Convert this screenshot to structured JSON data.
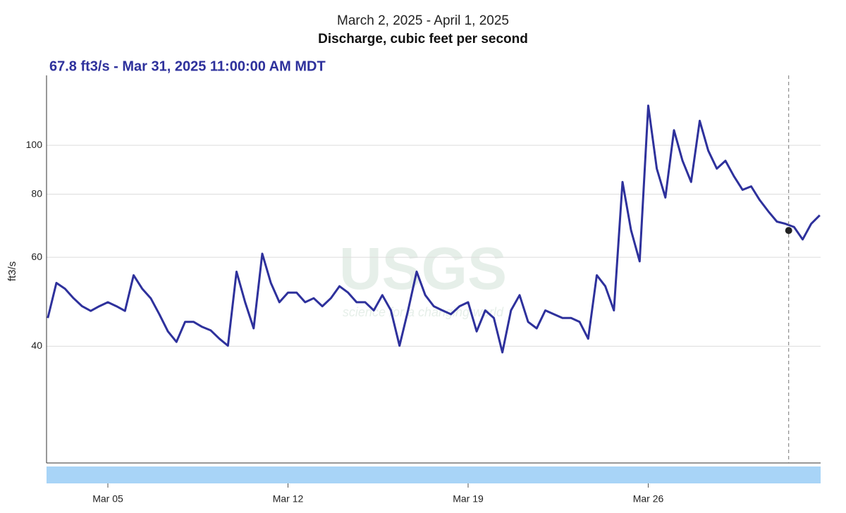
{
  "chart_data": {
    "type": "line",
    "title": "March 2, 2025 - April 1, 2025",
    "subtitle": "Discharge, cubic feet per second",
    "annotation": "67.8 ft3/s - Mar 31, 2025 11:00:00 AM MDT",
    "ylabel": "ft3/s",
    "watermark": "USGS",
    "watermark_sub": "science for a changing world",
    "log_y": true,
    "grid": true,
    "xlim": [
      "2025-03-02T14:48",
      "2025-04-01T16:47"
    ],
    "ylim": [
      23.5,
      137.5
    ],
    "yticks": [
      40,
      60,
      80,
      100
    ],
    "xticks": [
      {
        "value": "2025-03-05T00:00",
        "label": "Mar 05"
      },
      {
        "value": "2025-03-12T00:00",
        "label": "Mar 12"
      },
      {
        "value": "2025-03-19T00:00",
        "label": "Mar 19"
      },
      {
        "value": "2025-03-26T00:00",
        "label": "Mar 26"
      }
    ],
    "cursor": {
      "x": "2025-03-31T11:00",
      "value": 67.8
    },
    "x": [
      "2025-03-02T16:00",
      "2025-03-03T00:00",
      "2025-03-03T08:00",
      "2025-03-03T16:00",
      "2025-03-04T00:00",
      "2025-03-04T08:00",
      "2025-03-04T16:00",
      "2025-03-05T00:00",
      "2025-03-05T08:00",
      "2025-03-05T16:00",
      "2025-03-06T00:00",
      "2025-03-06T08:00",
      "2025-03-06T16:00",
      "2025-03-07T00:00",
      "2025-03-07T08:00",
      "2025-03-07T16:00",
      "2025-03-08T00:00",
      "2025-03-08T08:00",
      "2025-03-08T16:00",
      "2025-03-09T00:00",
      "2025-03-09T08:00",
      "2025-03-09T16:00",
      "2025-03-10T00:00",
      "2025-03-10T08:00",
      "2025-03-10T16:00",
      "2025-03-11T00:00",
      "2025-03-11T08:00",
      "2025-03-11T16:00",
      "2025-03-12T00:00",
      "2025-03-12T08:00",
      "2025-03-12T16:00",
      "2025-03-13T00:00",
      "2025-03-13T08:00",
      "2025-03-13T16:00",
      "2025-03-14T00:00",
      "2025-03-14T08:00",
      "2025-03-14T16:00",
      "2025-03-15T00:00",
      "2025-03-15T08:00",
      "2025-03-15T16:00",
      "2025-03-16T00:00",
      "2025-03-16T08:00",
      "2025-03-16T16:00",
      "2025-03-17T00:00",
      "2025-03-17T08:00",
      "2025-03-17T16:00",
      "2025-03-18T00:00",
      "2025-03-18T08:00",
      "2025-03-18T16:00",
      "2025-03-19T00:00",
      "2025-03-19T08:00",
      "2025-03-19T16:00",
      "2025-03-20T00:00",
      "2025-03-20T08:00",
      "2025-03-20T16:00",
      "2025-03-21T00:00",
      "2025-03-21T08:00",
      "2025-03-21T16:00",
      "2025-03-22T00:00",
      "2025-03-22T08:00",
      "2025-03-22T16:00",
      "2025-03-23T00:00",
      "2025-03-23T08:00",
      "2025-03-23T16:00",
      "2025-03-24T00:00",
      "2025-03-24T08:00",
      "2025-03-24T16:00",
      "2025-03-25T00:00",
      "2025-03-25T08:00",
      "2025-03-25T16:00",
      "2025-03-26T00:00",
      "2025-03-26T08:00",
      "2025-03-26T16:00",
      "2025-03-27T00:00",
      "2025-03-27T08:00",
      "2025-03-27T16:00",
      "2025-03-28T00:00",
      "2025-03-28T08:00",
      "2025-03-28T16:00",
      "2025-03-29T00:00",
      "2025-03-29T08:00",
      "2025-03-29T16:00",
      "2025-03-30T00:00",
      "2025-03-30T08:00",
      "2025-03-30T16:00",
      "2025-03-31T00:00",
      "2025-03-31T08:00",
      "2025-03-31T16:00",
      "2025-04-01T00:00",
      "2025-04-01T08:00",
      "2025-04-01T16:00"
    ],
    "series": [
      {
        "name": "Discharge",
        "color": "#2e319c",
        "values": [
          45.5,
          53.4,
          52,
          49.8,
          48,
          47,
          48,
          48.9,
          48,
          47,
          55.3,
          52,
          49.8,
          46.3,
          42.8,
          40.8,
          44.7,
          44.7,
          43.7,
          43,
          41.4,
          40.1,
          56.2,
          48.9,
          43.4,
          61,
          53.4,
          48.9,
          51.1,
          51.1,
          48.9,
          49.8,
          48,
          49.8,
          52.6,
          51.1,
          48.9,
          48.9,
          47.1,
          50.5,
          47.1,
          40.1,
          47.1,
          56.2,
          50.5,
          48,
          47.1,
          46.3,
          48,
          48.9,
          42.8,
          47.1,
          45.5,
          38.9,
          47.1,
          50.5,
          44.7,
          43.4,
          47.1,
          46.3,
          45.5,
          45.5,
          44.7,
          41.4,
          55.3,
          52.6,
          47.1,
          84.6,
          67.9,
          58.9,
          119.8,
          89.9,
          78.8,
          107.1,
          93.2,
          84.6,
          111.8,
          97.6,
          89.9,
          93.2,
          86.8,
          81.6,
          82.9,
          77.9,
          74,
          70.6,
          69.9,
          68.9,
          65.1,
          69.9,
          72.7
        ]
      }
    ]
  }
}
